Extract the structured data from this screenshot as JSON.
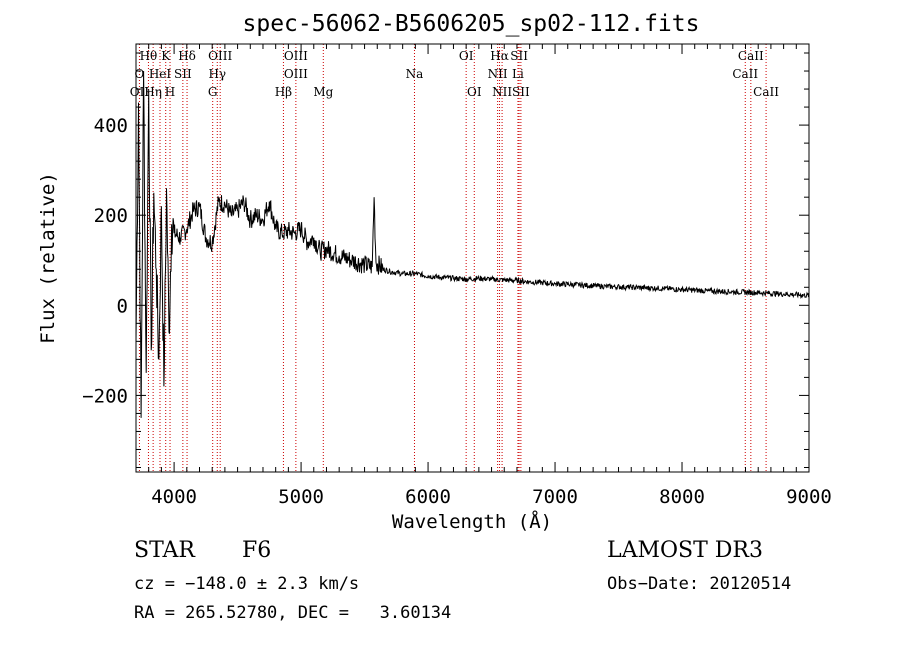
{
  "chart_data": {
    "type": "line",
    "title": "spec-56062-B5606205_sp02-112.fits",
    "xlabel": "Wavelength (Å)",
    "ylabel": "Flux (relative)",
    "xlim": [
      3700,
      9000
    ],
    "ylim": [
      -370,
      580
    ],
    "xticks": [
      4000,
      5000,
      6000,
      7000,
      8000,
      9000
    ],
    "yticks": [
      -200,
      0,
      200,
      400
    ],
    "series": [
      {
        "name": "flux",
        "x": [
          3700,
          3720,
          3740,
          3760,
          3780,
          3800,
          3820,
          3840,
          3860,
          3880,
          3900,
          3920,
          3940,
          3960,
          3980,
          4000,
          4050,
          4100,
          4150,
          4200,
          4250,
          4300,
          4350,
          4400,
          4450,
          4500,
          4550,
          4600,
          4650,
          4700,
          4750,
          4800,
          4850,
          4900,
          4950,
          5000,
          5050,
          5100,
          5150,
          5200,
          5300,
          5400,
          5500,
          5560,
          5575,
          5590,
          5650,
          5700,
          5800,
          5900,
          6000,
          6100,
          6200,
          6300,
          6400,
          6500,
          6600,
          6700,
          6800,
          6900,
          7000,
          7200,
          7400,
          7600,
          7800,
          8000,
          8200,
          8400,
          8600,
          8800,
          9000
        ],
        "y": [
          -80,
          450,
          -250,
          520,
          -150,
          480,
          -100,
          250,
          80,
          -120,
          220,
          -180,
          260,
          -60,
          180,
          160,
          150,
          170,
          210,
          220,
          150,
          140,
          230,
          225,
          200,
          210,
          230,
          190,
          200,
          190,
          230,
          170,
          160,
          165,
          160,
          170,
          140,
          150,
          120,
          125,
          110,
          100,
          90,
          85,
          240,
          95,
          80,
          75,
          70,
          70,
          65,
          62,
          60,
          58,
          60,
          58,
          56,
          55,
          52,
          50,
          48,
          45,
          42,
          40,
          38,
          35,
          32,
          30,
          28,
          25,
          22
        ]
      }
    ],
    "lines_top": [
      {
        "label": "Hθ",
        "x": 3798
      },
      {
        "label": "K",
        "x": 3934
      },
      {
        "label": "Hδ",
        "x": 4102
      },
      {
        "label": "OIII",
        "x": 4363
      },
      {
        "label": "OIII",
        "x": 4959
      },
      {
        "label": "OI",
        "x": 6300
      },
      {
        "label": "Hα",
        "x": 6563
      },
      {
        "label": "SII",
        "x": 6717
      },
      {
        "label": "CaII",
        "x": 8542
      }
    ],
    "lines_mid": [
      {
        "label": "O",
        "x": 3727
      },
      {
        "label": "HeI",
        "x": 3889
      },
      {
        "label": "SII",
        "x": 4069
      },
      {
        "label": "Hγ",
        "x": 4340
      },
      {
        "label": "OIII",
        "x": 4959
      },
      {
        "label": "Na",
        "x": 5893
      },
      {
        "label": "NII",
        "x": 6548
      },
      {
        "label": "Li",
        "x": 6708
      },
      {
        "label": "CaII",
        "x": 8498
      }
    ],
    "lines_bot": [
      {
        "label": "OII",
        "x": 3727
      },
      {
        "label": "Hη",
        "x": 3835
      },
      {
        "label": "H",
        "x": 3968
      },
      {
        "label": "G",
        "x": 4304
      },
      {
        "label": "Hβ",
        "x": 4861
      },
      {
        "label": "Mg",
        "x": 5175
      },
      {
        "label": "OI",
        "x": 6364
      },
      {
        "label": "NII",
        "x": 6583
      },
      {
        "label": "SII",
        "x": 6731
      },
      {
        "label": "CaII",
        "x": 8662
      }
    ]
  },
  "info": {
    "class": "STAR",
    "subclass": "F6",
    "survey": "LAMOST DR3",
    "cz": "cz = −148.0 ± 2.3 km/s",
    "obs_date": "Obs−Date: 20120514",
    "coords": "RA = 265.52780, DEC =   3.60134"
  },
  "colors": {
    "line": "#000000",
    "marker": "#cc0000"
  }
}
